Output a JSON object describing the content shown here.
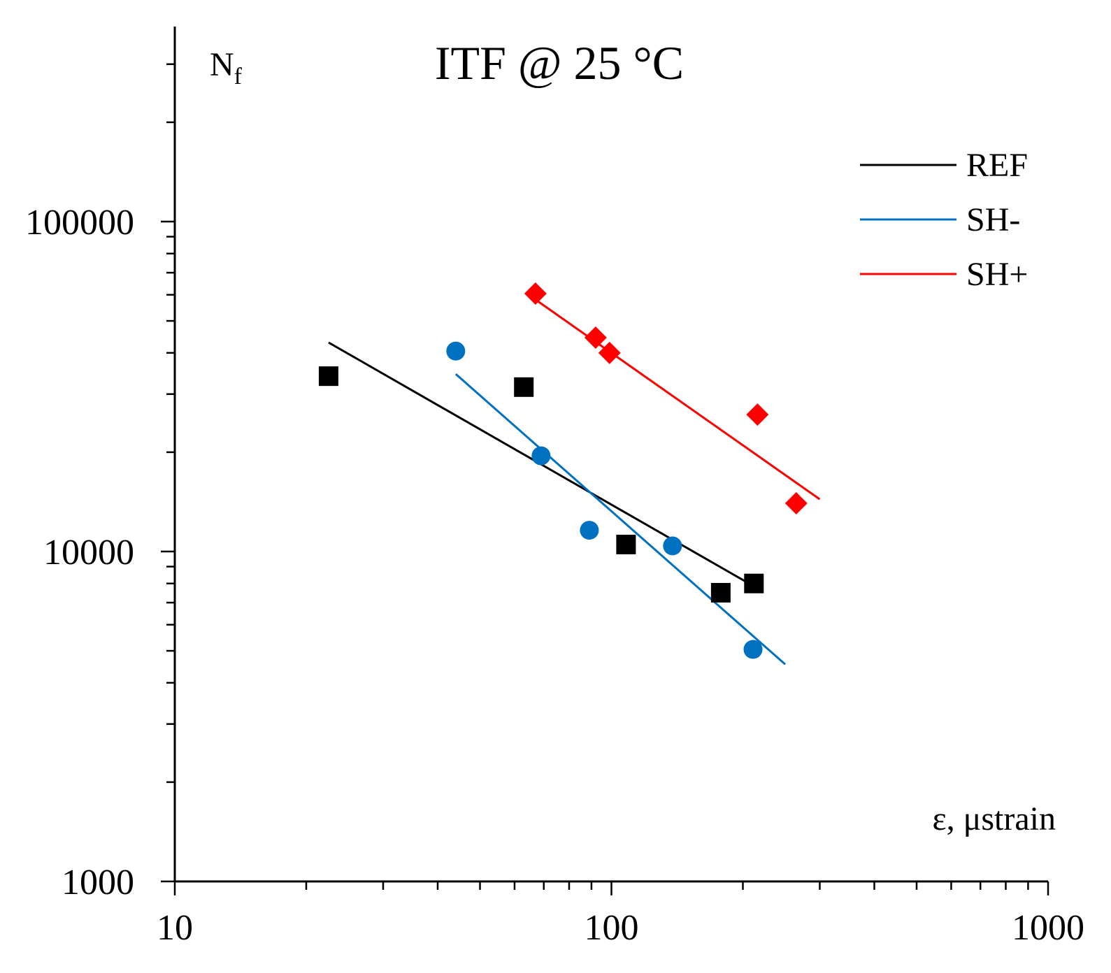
{
  "chart_data": {
    "type": "scatter",
    "title": "ITF @ 25 °C",
    "xlabel": "ε, μstrain",
    "ylabel": "N",
    "ylabel_subscript": "f",
    "xscale": "log",
    "yscale": "log",
    "xlim": [
      10,
      1000
    ],
    "ylim": [
      1000,
      400000
    ],
    "x_tick_labels": [
      "10",
      "100",
      "1000"
    ],
    "y_tick_labels": [
      "1000",
      "10000",
      "100000"
    ],
    "legend_position": "top-right",
    "series": [
      {
        "name": "REF",
        "color": "#000000",
        "marker": "square",
        "points": [
          [
            22.5,
            34000
          ],
          [
            63,
            31500
          ],
          [
            108,
            10500
          ],
          [
            178,
            7500
          ],
          [
            212,
            8000
          ]
        ],
        "trendline": [
          [
            22.5,
            43000
          ],
          [
            210,
            7900
          ]
        ]
      },
      {
        "name": "SH-",
        "color": "#0070C0",
        "marker": "circle",
        "points": [
          [
            44,
            40500
          ],
          [
            69,
            19500
          ],
          [
            89,
            11600
          ],
          [
            138,
            10400
          ],
          [
            211,
            5050
          ]
        ],
        "trendline": [
          [
            44,
            34500
          ],
          [
            250,
            4550
          ]
        ]
      },
      {
        "name": "SH+",
        "color": "#FF0000",
        "marker": "diamond",
        "points": [
          [
            67,
            60500
          ],
          [
            92,
            44500
          ],
          [
            99,
            40000
          ],
          [
            216,
            26000
          ],
          [
            265,
            14000
          ]
        ],
        "trendline": [
          [
            67,
            58000
          ],
          [
            300,
            14400
          ]
        ]
      }
    ]
  }
}
